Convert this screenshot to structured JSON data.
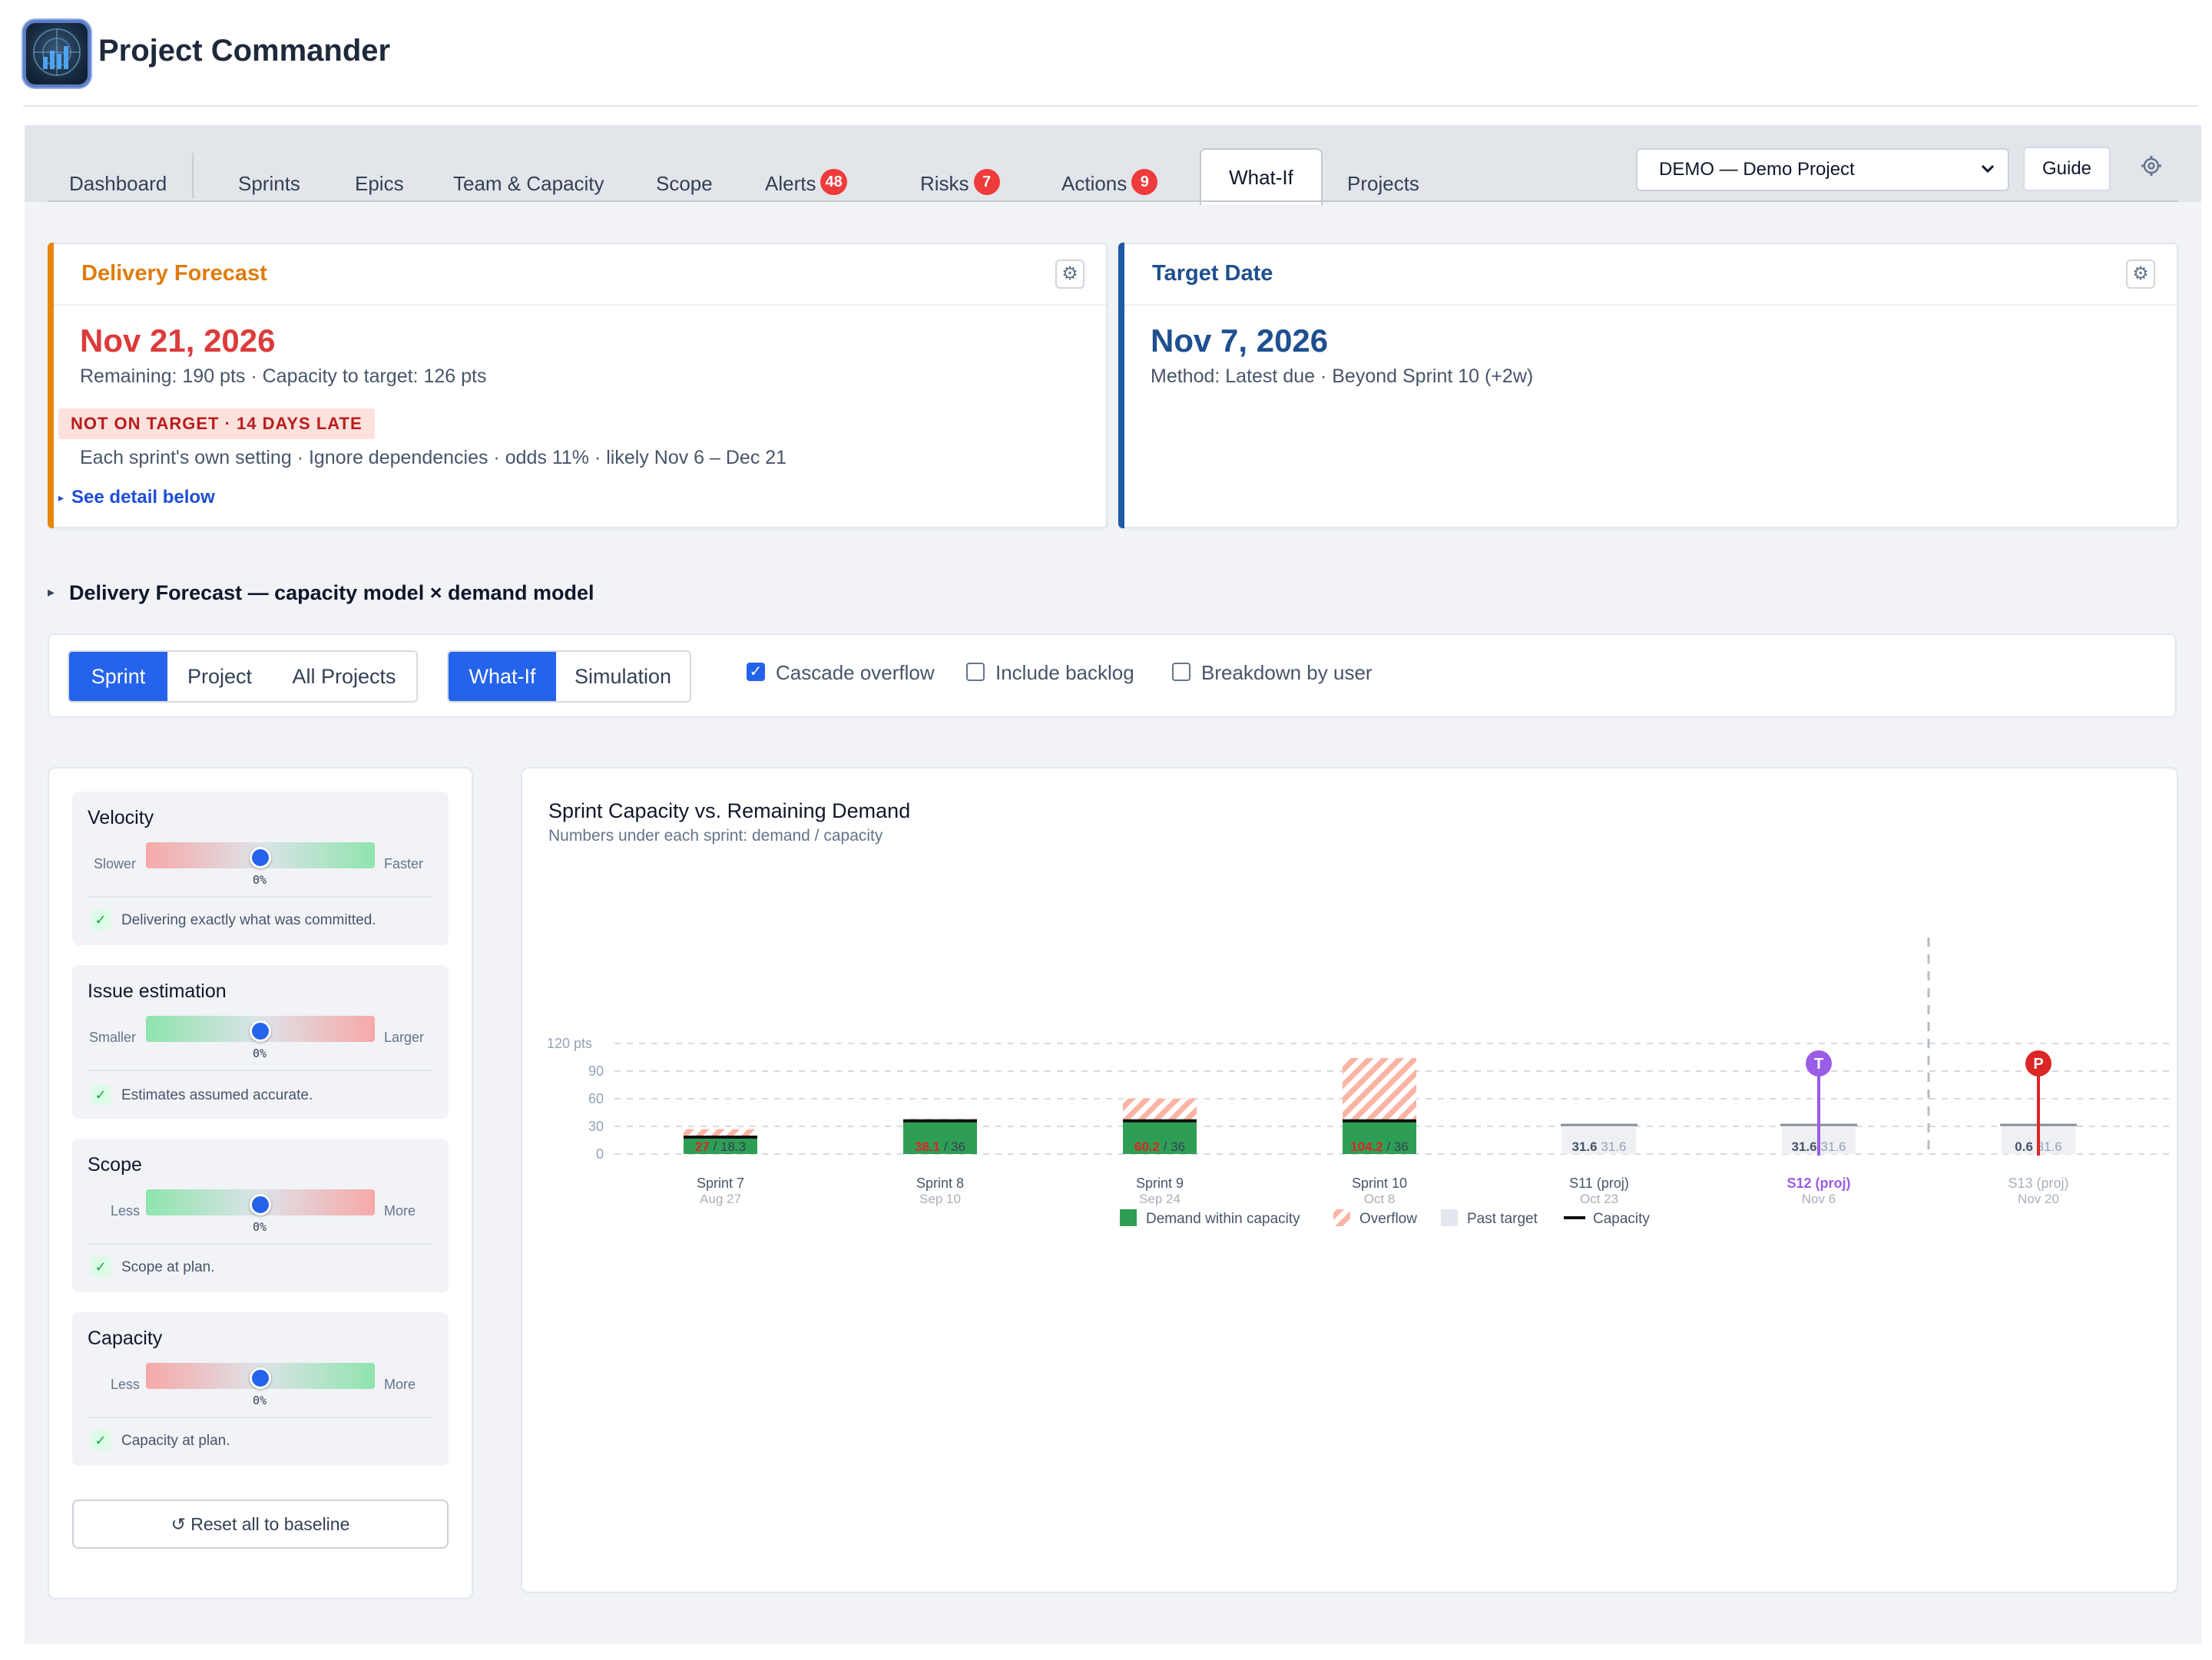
{
  "app": {
    "title": "Project Commander"
  },
  "tabs": [
    {
      "label": "Dashboard"
    },
    {
      "label": "Sprints"
    },
    {
      "label": "Epics"
    },
    {
      "label": "Team & Capacity"
    },
    {
      "label": "Scope"
    },
    {
      "label": "Alerts",
      "badge": "48"
    },
    {
      "label": "Risks",
      "badge": "7"
    },
    {
      "label": "Actions",
      "badge": "9"
    },
    {
      "label": "What-If",
      "active": true
    },
    {
      "label": "Projects"
    }
  ],
  "project_select": {
    "value": "DEMO — Demo Project"
  },
  "guide_label": "Guide",
  "forecast_card": {
    "title": "Delivery Forecast",
    "date": "Nov 21, 2026",
    "line1": "Remaining: 190 pts · Capacity to target: 126 pts",
    "status": "NOT ON TARGET · 14 DAYS LATE",
    "line2": "Each sprint's own setting · Ignore dependencies · odds 11% · likely Nov 6 – Dec 21",
    "link": "See detail below"
  },
  "target_card": {
    "title": "Target Date",
    "date": "Nov 7, 2026",
    "line1": "Method: Latest due · Beyond Sprint 10 (+2w)"
  },
  "section": {
    "title": "Delivery Forecast — capacity model × demand model"
  },
  "controls": {
    "scope_options": [
      "Sprint",
      "Project",
      "All Projects"
    ],
    "scope_selected": "Sprint",
    "mode_options": [
      "What-If",
      "Simulation"
    ],
    "mode_selected": "What-If",
    "checkboxes": [
      {
        "label": "Cascade overflow",
        "checked": true
      },
      {
        "label": "Include backlog",
        "checked": false
      },
      {
        "label": "Breakdown by user",
        "checked": false
      }
    ]
  },
  "levers": [
    {
      "title": "Velocity",
      "low": "Slower",
      "high": "Faster",
      "value": "0%",
      "note": "Delivering exactly what was committed."
    },
    {
      "title": "Issue estimation",
      "low": "Smaller",
      "high": "Larger",
      "value": "0%",
      "note": "Estimates assumed accurate."
    },
    {
      "title": "Scope",
      "low": "Less",
      "high": "More",
      "value": "0%",
      "note": "Scope at plan."
    },
    {
      "title": "Capacity",
      "low": "Less",
      "high": "More",
      "value": "0%",
      "note": "Capacity at plan."
    }
  ],
  "reset_label": "↺ Reset all to baseline",
  "chart": {
    "title": "Sprint Capacity vs. Remaining Demand",
    "subtitle": "Numbers under each sprint: demand / capacity"
  },
  "chart_data": {
    "type": "bar",
    "y_unit_label": "120 pts",
    "ylim": [
      0,
      120
    ],
    "yticks": [
      0,
      30,
      60,
      90
    ],
    "categories": [
      "Sprint 7",
      "Sprint 8",
      "Sprint 9",
      "Sprint 10",
      "S11 (proj)",
      "S12 (proj)",
      "S13 (proj)"
    ],
    "dates": [
      "Aug 27",
      "Sep 10",
      "Sep 24",
      "Oct 8",
      "Oct 23",
      "Nov 6",
      "Nov 20"
    ],
    "demand": [
      27,
      38.1,
      60.2,
      104.2,
      31.6,
      31.6,
      0.6
    ],
    "capacity": [
      18.3,
      36,
      36,
      36,
      31.6,
      31.6,
      31.6
    ],
    "demand_labels": [
      "27",
      "38.1",
      "60.2",
      "104.2",
      "31.6",
      "31.6",
      "0.6"
    ],
    "capacity_labels": [
      "18.3",
      "36",
      "36",
      "36",
      "31.6",
      "31.6",
      "31.6"
    ],
    "past_target": [
      false,
      false,
      false,
      false,
      true,
      true,
      true
    ],
    "markers": [
      {
        "letter": "T",
        "sprint": "S12 (proj)",
        "color": "#9b5de5"
      },
      {
        "letter": "P",
        "sprint": "S13 (proj)",
        "color": "#dc2626"
      }
    ],
    "legend": [
      "Demand within capacity",
      "Overflow",
      "Past target",
      "Capacity"
    ],
    "colors": {
      "within": "#2f9e55",
      "overflow": "#f9b4a4",
      "past": "#eef0f4",
      "capacity": "#111111",
      "target": "#9b5de5",
      "projected": "#dc2626"
    }
  }
}
